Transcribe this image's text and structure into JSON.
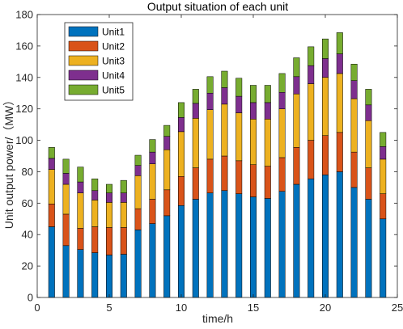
{
  "chart_data": {
    "type": "bar",
    "stacked": true,
    "title": "Output situation of each unit",
    "xlabel": "time/h",
    "ylabel": "Unit output power/（MW）",
    "xlim": [
      0,
      25
    ],
    "ylim": [
      0,
      180
    ],
    "xticks": [
      0,
      5,
      10,
      15,
      20,
      25
    ],
    "yticks": [
      0,
      20,
      40,
      60,
      80,
      100,
      120,
      140,
      160,
      180
    ],
    "legend_position": "top-left",
    "grid": false,
    "x": [
      1,
      2,
      3,
      4,
      5,
      6,
      7,
      8,
      9,
      10,
      11,
      12,
      13,
      14,
      15,
      16,
      17,
      18,
      19,
      20,
      21,
      22,
      23,
      24
    ],
    "series": [
      {
        "name": "Unit1",
        "color": "#0072BD",
        "values": [
          45,
          33,
          30.5,
          28.5,
          27,
          27.5,
          43,
          47,
          52,
          58.5,
          62.5,
          66.5,
          68,
          66,
          64,
          63,
          67.5,
          72,
          75.5,
          78,
          80,
          70,
          62.5,
          50
        ]
      },
      {
        "name": "Unit2",
        "color": "#D95319",
        "values": [
          14.5,
          20,
          13.5,
          16.5,
          17.5,
          17,
          13.5,
          15.5,
          16.5,
          18.5,
          20,
          21.5,
          22,
          21,
          20.5,
          20.5,
          21.5,
          23.5,
          24.5,
          25,
          25,
          22.5,
          20,
          16
        ]
      },
      {
        "name": "Unit3",
        "color": "#EDB120",
        "values": [
          22,
          19,
          22.5,
          17,
          16,
          16,
          21,
          22.5,
          25.5,
          28.5,
          31.5,
          31.5,
          33,
          30.5,
          29,
          30,
          31,
          34,
          36,
          37,
          37.5,
          34,
          30,
          22
        ]
      },
      {
        "name": "Unit4",
        "color": "#7E2F8E",
        "values": [
          7,
          7,
          7,
          6,
          6,
          6,
          6.5,
          7.5,
          8.5,
          9,
          9.5,
          10.5,
          10.5,
          10.5,
          10.5,
          10.5,
          10.5,
          11,
          11.5,
          12,
          12.5,
          11.5,
          10,
          8
        ]
      },
      {
        "name": "Unit5",
        "color": "#77AC30",
        "values": [
          7,
          9,
          9.5,
          7.5,
          5.5,
          8,
          6.5,
          8,
          7,
          9.5,
          9,
          10.5,
          10.5,
          11.5,
          11,
          11,
          12,
          12,
          12,
          12.5,
          13.5,
          10.5,
          10,
          9
        ]
      }
    ]
  }
}
